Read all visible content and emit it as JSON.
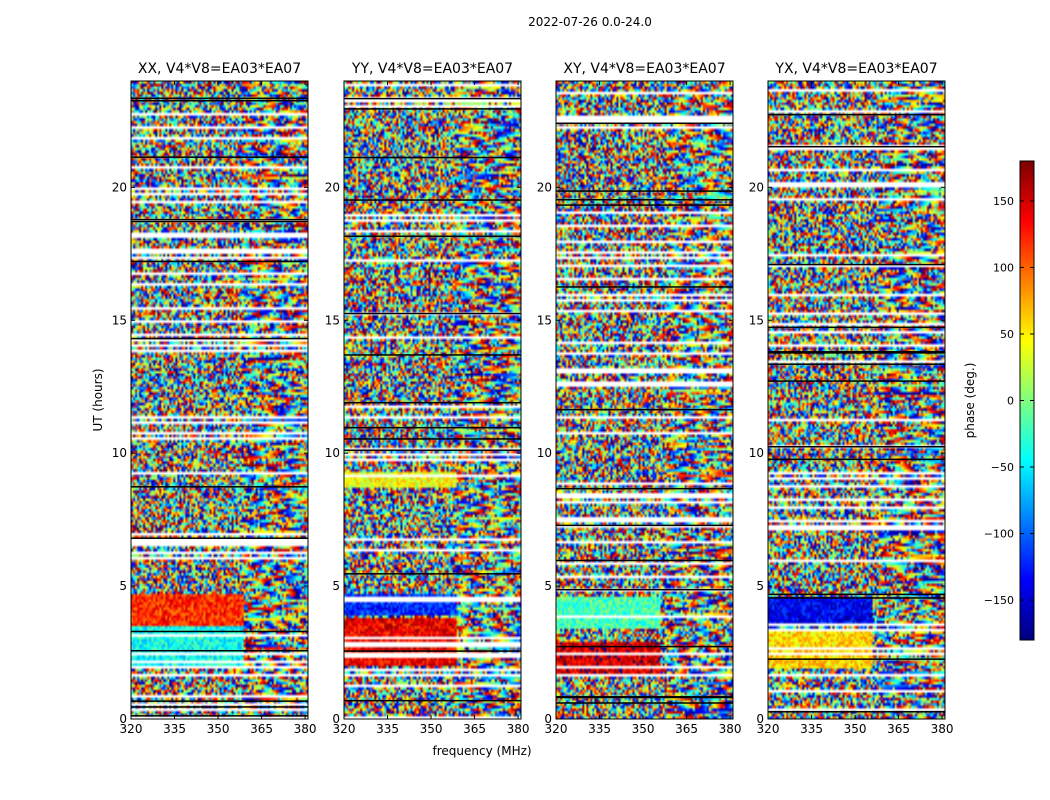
{
  "figure_title": "2022-07-26 0.0-24.0",
  "colorbar": {
    "label": "phase (deg.)",
    "range": [
      -180,
      180
    ],
    "ticks": [
      150,
      100,
      50,
      0,
      -50,
      -100,
      -150
    ],
    "tick_labels": [
      "150",
      "100",
      "50",
      "0",
      "−50",
      "−100",
      "−150"
    ],
    "colormap": "jet"
  },
  "chart_data": [
    {
      "type": "heatmap",
      "title": "XX, V4*V8=EA03*EA07",
      "xlabel": "",
      "ylabel": "UT (hours)",
      "xlim": [
        320,
        381
      ],
      "ylim": [
        0,
        24
      ],
      "xticks": [
        "320",
        "335",
        "350",
        "365",
        "380"
      ],
      "yticks": [
        "0",
        "5",
        "10",
        "15",
        "20"
      ],
      "value": "phase (deg.)",
      "coherent_blocks": [
        {
          "t0": 3.5,
          "t1": 4.7,
          "f0": 320,
          "f1": 359,
          "phase": 120
        },
        {
          "t0": 2.0,
          "t1": 3.5,
          "f0": 320,
          "f1": 359,
          "phase": -40
        }
      ]
    },
    {
      "type": "heatmap",
      "title": "YY, V4*V8=EA03*EA07",
      "xlabel": "frequency (MHz)",
      "ylabel": "",
      "xlim": [
        320,
        381
      ],
      "ylim": [
        0,
        24
      ],
      "xticks": [
        "320",
        "335",
        "350",
        "365",
        "380"
      ],
      "yticks": [
        "0",
        "5",
        "10",
        "15",
        "20"
      ],
      "value": "phase (deg.)",
      "coherent_blocks": [
        {
          "t0": 3.9,
          "t1": 4.7,
          "f0": 320,
          "f1": 359,
          "phase": -120
        },
        {
          "t0": 2.0,
          "t1": 3.8,
          "f0": 320,
          "f1": 359,
          "phase": 140
        },
        {
          "t0": 8.7,
          "t1": 9.3,
          "f0": 320,
          "f1": 359,
          "phase": 40
        }
      ]
    },
    {
      "type": "heatmap",
      "title": "XY, V4*V8=EA03*EA07",
      "xlabel": "",
      "ylabel": "",
      "xlim": [
        320,
        381
      ],
      "ylim": [
        0,
        24
      ],
      "xticks": [
        "320",
        "335",
        "350",
        "365",
        "380"
      ],
      "yticks": [
        "0",
        "5",
        "10",
        "15",
        "20"
      ],
      "value": "phase (deg.)",
      "coherent_blocks": [
        {
          "t0": 3.4,
          "t1": 4.6,
          "f0": 320,
          "f1": 356,
          "phase": -20
        },
        {
          "t0": 1.7,
          "t1": 2.9,
          "f0": 320,
          "f1": 356,
          "phase": 150
        }
      ]
    },
    {
      "type": "heatmap",
      "title": "YX, V4*V8=EA03*EA07",
      "xlabel": "",
      "ylabel": "",
      "xlim": [
        320,
        381
      ],
      "ylim": [
        0,
        24
      ],
      "xticks": [
        "320",
        "335",
        "350",
        "365",
        "380"
      ],
      "yticks": [
        "0",
        "5",
        "10",
        "15",
        "20"
      ],
      "value": "phase (deg.)",
      "coherent_blocks": [
        {
          "t0": 3.5,
          "t1": 4.6,
          "f0": 320,
          "f1": 356,
          "phase": -140
        },
        {
          "t0": 1.9,
          "t1": 3.3,
          "f0": 320,
          "f1": 356,
          "phase": 60
        }
      ]
    }
  ]
}
